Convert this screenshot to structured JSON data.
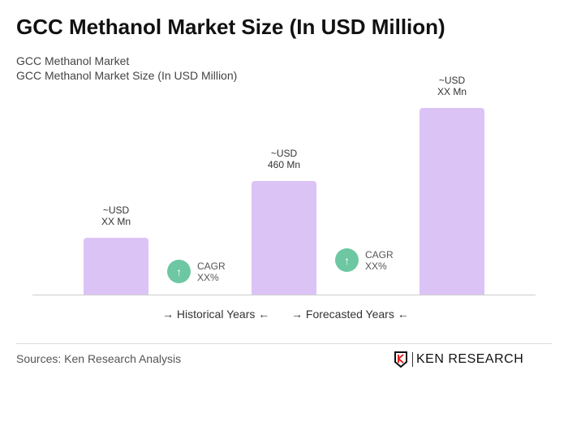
{
  "title": "GCC Methanol Market Size (In USD Million)",
  "subtitle1": "GCC Methanol Market",
  "subtitle2": "GCC Methanol Market Size (In USD Million)",
  "chart_data": {
    "type": "bar",
    "categories": [
      "",
      "",
      ""
    ],
    "labels": [
      [
        "~USD",
        "XX Mn"
      ],
      [
        "~USD",
        "460 Mn"
      ],
      [
        "~USD",
        "XX Mn"
      ]
    ],
    "values": [
      null,
      460,
      null
    ],
    "bar_color": "#dcc3f6",
    "cagr": [
      {
        "label": "CAGR",
        "value": "XX%"
      },
      {
        "label": "CAGR",
        "value": "XX%"
      }
    ],
    "cagr_color": "#6dc7a2",
    "legend": [
      {
        "label": "Historical Years"
      },
      {
        "label": "Forecasted Years"
      }
    ]
  },
  "source": "Sources: Ken Research Analysis",
  "logo": "KEN RESEARCH"
}
